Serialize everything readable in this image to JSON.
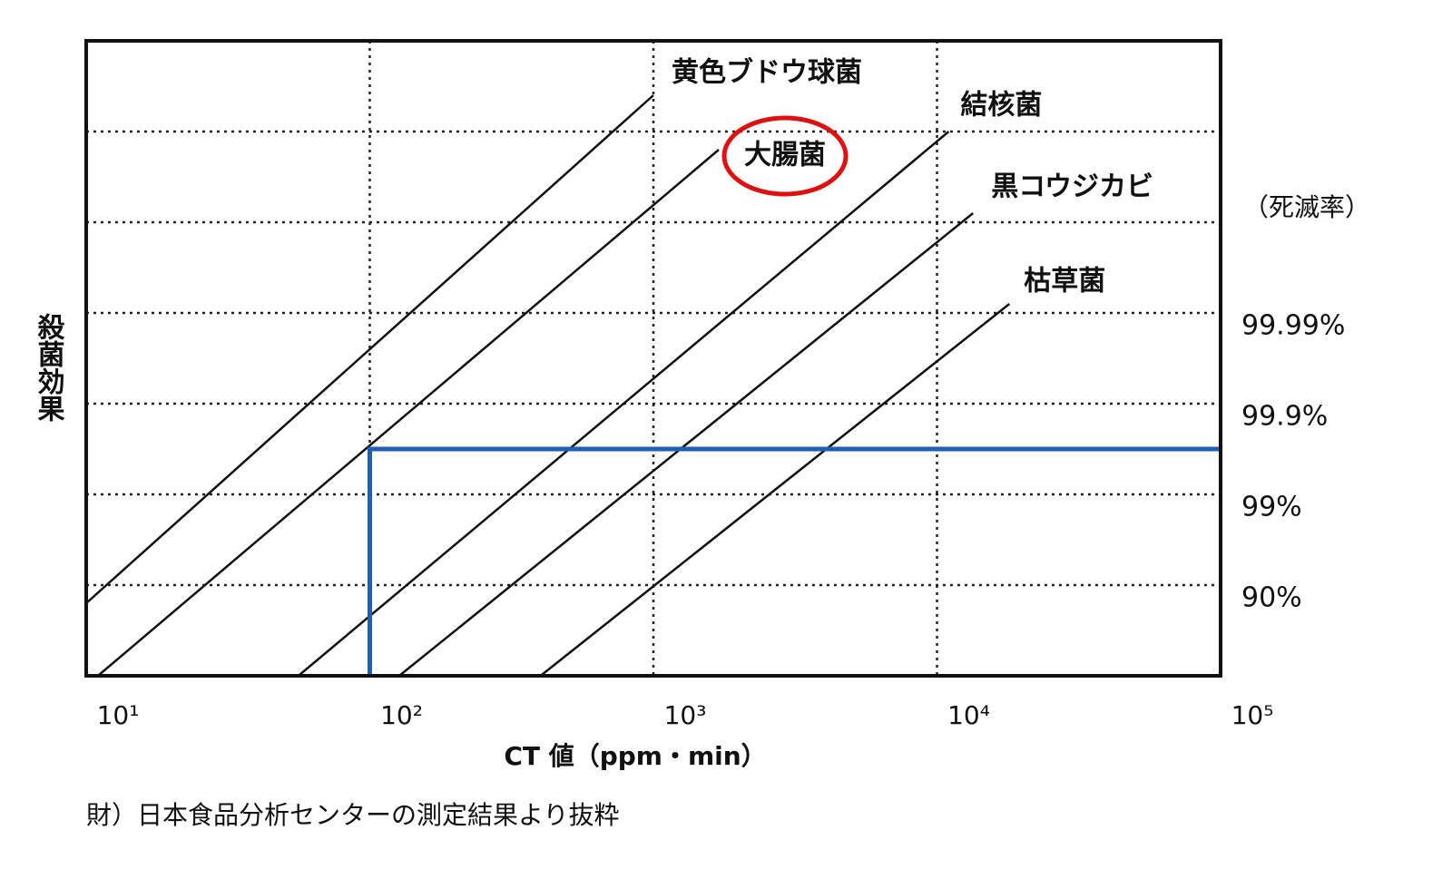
{
  "chart_data": {
    "type": "line",
    "y_label": "殺菌効果",
    "y2_label": "（死滅率）",
    "x_label": "CT 値（ppm・min）",
    "source": "財）日本食品分析センターの測定結果より抜粋",
    "log_x": true,
    "grid": true,
    "xlim": [
      10,
      100000
    ],
    "xticks": [
      {
        "value": 10,
        "label": "10¹"
      },
      {
        "value": 100,
        "label": "10²"
      },
      {
        "value": 1000,
        "label": "10³"
      },
      {
        "value": 10000,
        "label": "10⁴"
      },
      {
        "value": 100000,
        "label": "10⁵"
      }
    ],
    "ylim": [
      0,
      7
    ],
    "yticks": [
      {
        "value": 1,
        "label": "90%"
      },
      {
        "value": 2,
        "label": "99%"
      },
      {
        "value": 3,
        "label": "99.9%"
      },
      {
        "value": 4,
        "label": "99.99%"
      },
      {
        "value": 5,
        "label": null
      },
      {
        "value": 6,
        "label": null
      }
    ],
    "series": [
      {
        "name": "黄色ブドウ球菌",
        "color": "#111111",
        "x": [
          10,
          1000
        ],
        "values": [
          0.8,
          6.4
        ]
      },
      {
        "name": "大腸菌",
        "color": "#111111",
        "x": [
          11,
          1700
        ],
        "values": [
          0,
          5.8
        ],
        "highlighted": true
      },
      {
        "name": "結核菌",
        "color": "#111111",
        "x": [
          56,
          11000
        ],
        "values": [
          0,
          6
        ]
      },
      {
        "name": "黒コウジカビ",
        "color": "#111111",
        "x": [
          127,
          13400
        ],
        "values": [
          0,
          5.1
        ]
      },
      {
        "name": "枯草菌",
        "color": "#111111",
        "x": [
          400,
          18000
        ],
        "values": [
          0,
          4.1
        ]
      }
    ],
    "highlight_color": "#e01010",
    "reference": {
      "x": 100,
      "y": 2.5,
      "color": "#1f5fb4"
    }
  }
}
